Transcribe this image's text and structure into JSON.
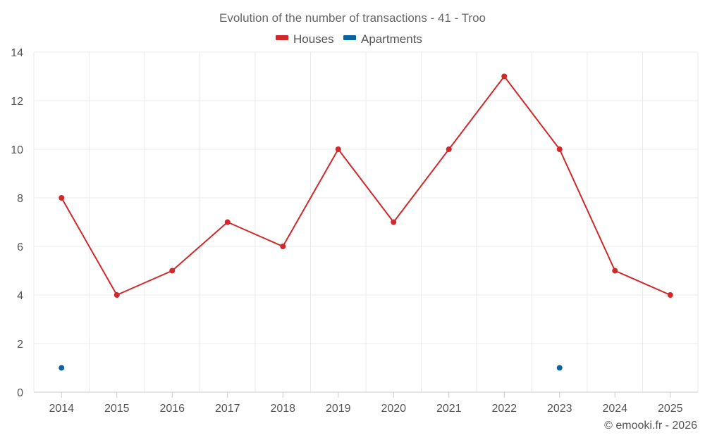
{
  "chart_data": {
    "type": "line",
    "title": "Evolution of the number of transactions - 41 - Troo",
    "categories": [
      "2014",
      "2015",
      "2016",
      "2017",
      "2018",
      "2019",
      "2020",
      "2021",
      "2022",
      "2023",
      "2024",
      "2025"
    ],
    "ylim": [
      0,
      14
    ],
    "yticks": [
      0,
      2,
      4,
      6,
      8,
      10,
      12,
      14
    ],
    "grid": true,
    "legend_position": "top-center",
    "series": [
      {
        "name": "Houses",
        "color": "#d0282b",
        "values": [
          8,
          4,
          5,
          7,
          6,
          10,
          7,
          10,
          13,
          10,
          5,
          4
        ]
      },
      {
        "name": "Apartments",
        "color": "#0a64a0",
        "values": [
          1,
          null,
          null,
          null,
          null,
          null,
          null,
          null,
          null,
          1,
          null,
          null
        ]
      }
    ]
  },
  "credit": "© emooki.fr - 2026"
}
